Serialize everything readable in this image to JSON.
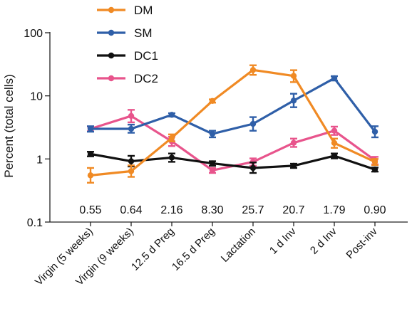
{
  "chart_data": {
    "type": "line",
    "ylabel": "Percent (total cells)",
    "yscale": "log",
    "ylim": [
      0.1,
      100
    ],
    "y_ticks": [
      {
        "value": 0.1,
        "label": "0.1"
      },
      {
        "value": 1,
        "label": "1"
      },
      {
        "value": 10,
        "label": "10"
      },
      {
        "value": 100,
        "label": "100"
      }
    ],
    "categories": [
      "Virgin (5 weeks)",
      "Virgin (9 weeks)",
      "12.5 d Preg",
      "16.5 d Preg",
      "Lactation",
      "1 d Inv",
      "2 d Inv",
      "Post-inv"
    ],
    "annotations": [
      "0.55",
      "0.64",
      "2.16",
      "8.30",
      "25.7",
      "20.7",
      "1.79",
      "0.90"
    ],
    "legend_position": "top-center",
    "series": [
      {
        "name": "DM",
        "color": "#f08a24",
        "values": [
          0.55,
          0.64,
          2.16,
          8.3,
          25.7,
          20.7,
          1.79,
          0.9
        ],
        "err": [
          [
            0.42,
            0.72
          ],
          [
            0.52,
            0.79
          ],
          [
            1.9,
            2.45
          ],
          [
            7.8,
            8.8
          ],
          [
            21.5,
            30.5
          ],
          [
            16.5,
            25.5
          ],
          [
            1.5,
            2.1
          ],
          [
            0.8,
            1.0
          ]
        ]
      },
      {
        "name": "SM",
        "color": "#2f5fa8",
        "values": [
          3.0,
          3.0,
          5.0,
          2.5,
          3.6,
          8.4,
          19.0,
          2.7
        ],
        "err": [
          [
            2.7,
            3.3
          ],
          [
            2.6,
            3.5
          ],
          [
            4.7,
            5.3
          ],
          [
            2.2,
            2.8
          ],
          [
            2.8,
            4.6
          ],
          [
            6.6,
            10.8
          ],
          [
            17.5,
            20.5
          ],
          [
            2.2,
            3.3
          ]
        ]
      },
      {
        "name": "DC1",
        "color": "#111111",
        "values": [
          1.2,
          0.92,
          1.05,
          0.85,
          0.72,
          0.78,
          1.12,
          0.68
        ],
        "err": [
          [
            1.1,
            1.3
          ],
          [
            0.76,
            1.12
          ],
          [
            0.9,
            1.22
          ],
          [
            0.78,
            0.92
          ],
          [
            0.6,
            0.88
          ],
          [
            0.72,
            0.84
          ],
          [
            1.02,
            1.22
          ],
          [
            0.63,
            0.73
          ]
        ]
      },
      {
        "name": "DC2",
        "color": "#e8548c",
        "values": [
          3.0,
          4.8,
          1.9,
          0.66,
          0.9,
          1.8,
          2.8,
          0.95
        ],
        "err": [
          [
            2.75,
            3.25
          ],
          [
            3.8,
            6.0
          ],
          [
            1.6,
            2.25
          ],
          [
            0.6,
            0.72
          ],
          [
            0.78,
            1.02
          ],
          [
            1.55,
            2.1
          ],
          [
            2.4,
            3.25
          ],
          [
            0.82,
            1.08
          ]
        ]
      }
    ]
  }
}
